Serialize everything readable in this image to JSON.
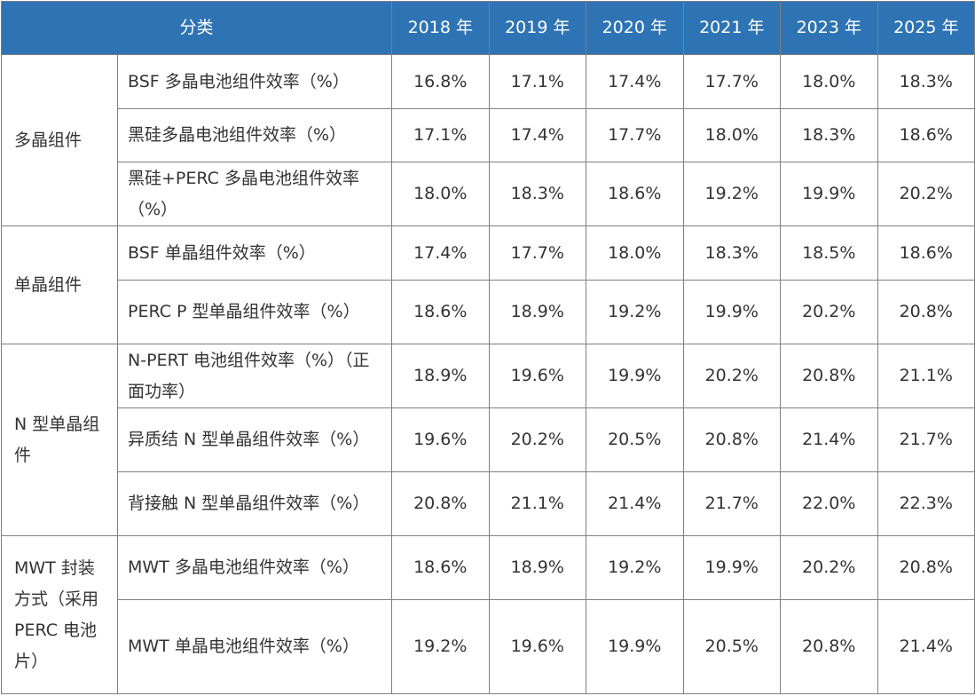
{
  "headers": [
    "分类",
    "2018 年",
    "2019 年",
    "2020 年",
    "2021 年",
    "2023 年",
    "2025 年"
  ],
  "groups": [
    {
      "name": "多晶组件",
      "rows": [
        {
          "label": "BSF  多晶电池组件效率（%）",
          "values": [
            "16.8%",
            "17.1%",
            "17.4%",
            "17.7%",
            "18.0%",
            "18.3%"
          ]
        },
        {
          "label": "黑硅多晶电池组件效率（%）",
          "values": [
            "17.1%",
            "17.4%",
            "17.7%",
            "18.0%",
            "18.3%",
            "18.6%"
          ]
        },
        {
          "label": "黑硅+PERC  多晶电池组件效率（%）",
          "values": [
            "18.0%",
            "18.3%",
            "18.6%",
            "19.2%",
            "19.9%",
            "20.2%"
          ]
        }
      ]
    },
    {
      "name": "单晶组件",
      "rows": [
        {
          "label": "BSF 单晶组件效率（%）",
          "values": [
            "17.4%",
            "17.7%",
            "18.0%",
            "18.3%",
            "18.5%",
            "18.6%"
          ]
        },
        {
          "label": "PERC P 型单晶组件效率（%）",
          "values": [
            "18.6%",
            "18.9%",
            "19.2%",
            "19.9%",
            "20.2%",
            "20.8%"
          ]
        }
      ]
    },
    {
      "name": "N 型单晶组件",
      "rows": [
        {
          "label": "N-PERT  电池组件效率（%）（正面功率）",
          "values": [
            "18.9%",
            "19.6%",
            "19.9%",
            "20.2%",
            "20.8%",
            "21.1%"
          ]
        },
        {
          "label": "异质结 N 型单晶组件效率（%）",
          "values": [
            "19.6%",
            "20.2%",
            "20.5%",
            "20.8%",
            "21.4%",
            "21.7%"
          ]
        },
        {
          "label": "背接触 N 型单晶组件效率（%）",
          "values": [
            "20.8%",
            "21.1%",
            "21.4%",
            "21.7%",
            "22.0%",
            "22.3%"
          ]
        }
      ]
    },
    {
      "name": "MWT 封装方式（采用 PERC 电池片）",
      "rows": [
        {
          "label": "MWT 多晶电池组件效率（%）",
          "values": [
            "18.6%",
            "18.9%",
            "19.2%",
            "19.9%",
            "20.2%",
            "20.8%"
          ]
        },
        {
          "label": "MWT 单晶电池组件效率（%）",
          "values": [
            "19.2%",
            "19.6%",
            "19.9%",
            "20.5%",
            "20.8%",
            "21.4%"
          ]
        }
      ]
    }
  ]
}
